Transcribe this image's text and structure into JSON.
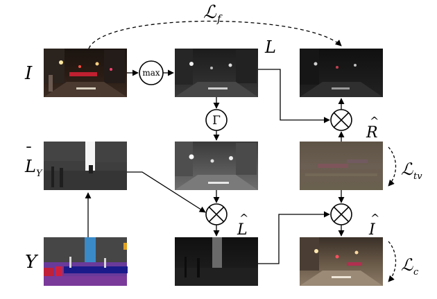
{
  "labels": {
    "loss_f": "ℒ",
    "loss_f_sub": "f",
    "input": "I",
    "illum": "L",
    "max_op": "max",
    "gamma_op": "Γ",
    "reflect": "R",
    "reflect_hat": "^",
    "loss_tv": "ℒ",
    "loss_tv_sub": "tv",
    "sem_illum": "L",
    "sem_illum_sub": "Y",
    "sem_illum_bar": "¯",
    "illum_hat": "L",
    "illum_hat_mark": "^",
    "recon": "I",
    "recon_hat": "^",
    "semantic": "Y",
    "loss_c": "ℒ",
    "loss_c_sub": "c"
  }
}
